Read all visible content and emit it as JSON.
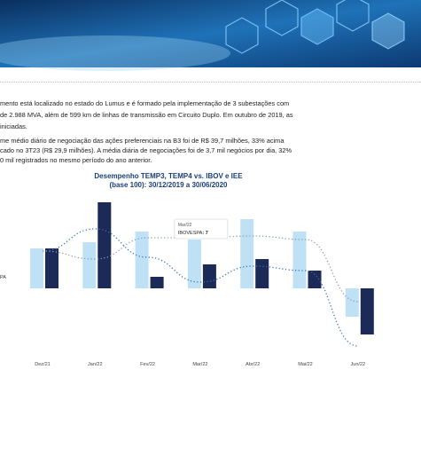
{
  "paragraphs": [
    [
      "mento está localizado no estado do Lumus e é formado pela implementação de 3 subestações com",
      "de 2.988 MVA, além de 599 km de linhas de transmissão em Circuito Duplo. Em outubro de 2019, as",
      "iniciadas."
    ],
    [
      "me médio diário de negociação das ações preferenciais na B3 foi de R$ 39,7 milhões, 33% acima",
      "cado no 3T23 (R$ 29,9 milhões). A média diária de negociações foi de 3,7 mil negócios por dia, 32%",
      "0 mil registrados no mesmo período do ano anterior."
    ]
  ],
  "side_label": "PA",
  "chart_data": {
    "type": "bar",
    "title": [
      "Desempenho TEMP3, TEMP4 vs. IBOV e IEE",
      "(base 100): 30/12/2019 a 30/06/2020"
    ],
    "categories": [
      "Dez/21",
      "Jan/22",
      "Fev/22",
      "Mar/22",
      "Abr/22",
      "Mai/22",
      "Jun/22"
    ],
    "ylim": [
      -85,
      125
    ],
    "series": [
      {
        "type": "bar",
        "color": "#bfe1f5",
        "values": [
          45,
          52,
          64,
          55,
          78,
          64,
          -32
        ]
      },
      {
        "type": "bar",
        "color": "#1b2a57",
        "values": [
          45,
          97,
          13,
          27,
          33,
          20,
          -52
        ]
      },
      {
        "type": "line",
        "name": "IBOVESPA",
        "color": "#3a6fb5",
        "values": [
          42,
          67,
          35,
          7,
          25,
          20,
          -65
        ]
      },
      {
        "type": "line",
        "color": "#8a9bb0",
        "values": [
          42,
          33,
          57,
          57,
          59,
          55,
          -15
        ]
      }
    ],
    "tooltip": {
      "category": 3,
      "series": 2
    }
  }
}
